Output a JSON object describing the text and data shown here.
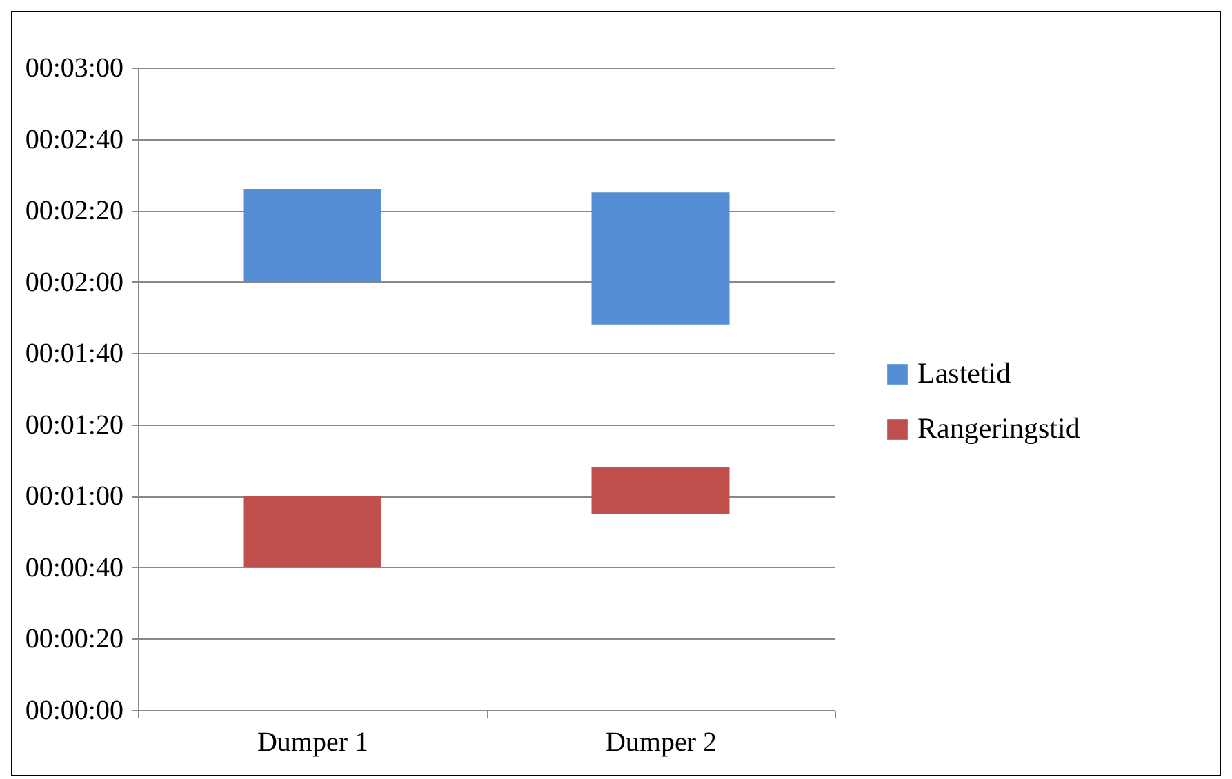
{
  "chart_data": {
    "type": "bar",
    "categories": [
      "Dumper 1",
      "Dumper 2"
    ],
    "series": [
      {
        "name": "Lastetid",
        "color": "#558ed5",
        "base": [
          120,
          108
        ],
        "values": [
          26,
          37
        ]
      },
      {
        "name": "Rangeringstid",
        "color": "#c0504d",
        "base": [
          40,
          55
        ],
        "values": [
          20,
          13
        ]
      }
    ],
    "ylim": [
      0,
      180
    ],
    "yticks": [
      {
        "value": 0,
        "label": "00:00:00"
      },
      {
        "value": 20,
        "label": "00:00:20"
      },
      {
        "value": 40,
        "label": "00:00:40"
      },
      {
        "value": 60,
        "label": "00:01:00"
      },
      {
        "value": 80,
        "label": "00:01:20"
      },
      {
        "value": 100,
        "label": "00:01:40"
      },
      {
        "value": 120,
        "label": "00:02:00"
      },
      {
        "value": 140,
        "label": "00:02:20"
      },
      {
        "value": 160,
        "label": "00:02:40"
      },
      {
        "value": 180,
        "label": "00:03:00"
      }
    ],
    "grid": "y",
    "legend": "right"
  }
}
